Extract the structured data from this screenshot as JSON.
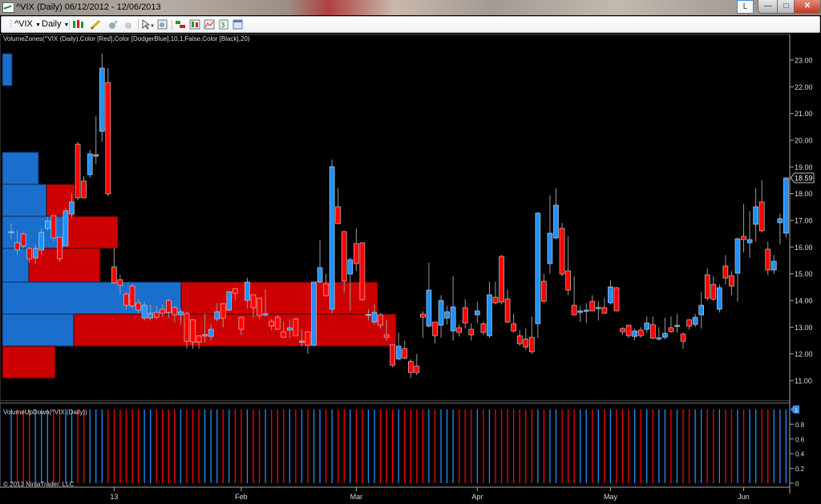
{
  "window": {
    "title": "^VIX (Daily)  06/12/2012 - 12/06/2013",
    "link_button": "L",
    "minimize": "—",
    "maximize": "□",
    "close": "✕"
  },
  "toolbar": {
    "instrument": "^VIX",
    "period": "Daily",
    "icons": [
      "chart-style-icon",
      "drawing-pencil-icon",
      "zoom-in-icon",
      "zoom-out-icon",
      "pointer-icon",
      "data-box-icon",
      "strategies-icon",
      "indicators-icon",
      "dollar-icon",
      "properties-icon"
    ]
  },
  "indicators": {
    "price_panel_label": "VolumeZones(^VIX (Daily),Color [Red],Color [DodgerBlue],10,1,False,Color [Black],20)",
    "volume_panel_label": "VolumeUpDown(^VIX (Daily))",
    "copyright": "© 2013 NinjaTrader, LLC"
  },
  "colors": {
    "up": "#1e90ff",
    "down": "#ff0000",
    "zone_up": "#1a6fcc",
    "zone_down": "#cc0000",
    "background": "#000000"
  },
  "chart_data": {
    "type": "candlestick",
    "symbol": "^VIX",
    "last_price": "18.59",
    "ylim": [
      10.5,
      23.9
    ],
    "y_ticks": [
      "23.00",
      "22.00",
      "21.00",
      "20.00",
      "19.00",
      "18.00",
      "17.00",
      "16.00",
      "15.00",
      "14.00",
      "13.00",
      "12.00",
      "11.00"
    ],
    "x_tick_labels": [
      {
        "label": "13",
        "bar": 17
      },
      {
        "label": "Feb",
        "bar": 38
      },
      {
        "label": "Mar",
        "bar": 57
      },
      {
        "label": "Apr",
        "bar": 77
      },
      {
        "label": "May",
        "bar": 99
      },
      {
        "label": "Jun",
        "bar": 121
      }
    ],
    "ohlc": [
      [
        16.58,
        16.88,
        16.28,
        16.58
      ],
      [
        16.16,
        16.64,
        15.71,
        15.89
      ],
      [
        16.49,
        16.55,
        15.95,
        16.04
      ],
      [
        15.95,
        16.01,
        15.41,
        15.56
      ],
      [
        15.59,
        16.1,
        15.38,
        15.95
      ],
      [
        15.89,
        16.7,
        15.71,
        16.55
      ],
      [
        16.7,
        17.12,
        16.61,
        16.97
      ],
      [
        17.18,
        17.18,
        16.22,
        16.34
      ],
      [
        16.37,
        16.37,
        15.44,
        15.56
      ],
      [
        16.04,
        17.48,
        16.04,
        17.36
      ],
      [
        17.24,
        18.0,
        17.09,
        17.69
      ],
      [
        19.85,
        19.94,
        17.75,
        17.84
      ],
      [
        18.47,
        18.65,
        17.84,
        17.84
      ],
      [
        18.71,
        19.64,
        18.59,
        19.49
      ],
      [
        19.4,
        20.9,
        19.1,
        19.46
      ],
      [
        20.33,
        23.24,
        19.94,
        22.7
      ],
      [
        22.16,
        22.7,
        17.9,
        17.99
      ],
      [
        15.26,
        15.95,
        14.63,
        14.66
      ],
      [
        14.78,
        14.96,
        14.24,
        14.57
      ],
      [
        14.24,
        14.3,
        13.67,
        13.82
      ],
      [
        14.54,
        14.6,
        13.7,
        13.79
      ],
      [
        13.91,
        14.05,
        13.5,
        13.64
      ],
      [
        13.34,
        13.97,
        13.25,
        13.82
      ],
      [
        13.34,
        13.85,
        13.25,
        13.52
      ],
      [
        13.55,
        13.8,
        13.3,
        13.37
      ],
      [
        13.67,
        13.85,
        13.4,
        13.52
      ],
      [
        14.0,
        14.05,
        13.35,
        13.55
      ],
      [
        13.73,
        13.8,
        13.2,
        13.46
      ],
      [
        13.46,
        13.7,
        13.1,
        13.58
      ],
      [
        13.52,
        13.6,
        12.2,
        12.47
      ],
      [
        13.28,
        13.3,
        12.2,
        12.44
      ],
      [
        12.68,
        12.7,
        12.2,
        12.44
      ],
      [
        12.7,
        13.52,
        12.41,
        12.72
      ],
      [
        12.65,
        13.1,
        12.5,
        12.92
      ],
      [
        13.31,
        13.9,
        13.2,
        13.58
      ],
      [
        13.88,
        13.9,
        13.0,
        13.34
      ],
      [
        13.64,
        14.35,
        13.6,
        14.33
      ],
      [
        14.45,
        14.45,
        14.0,
        14.27
      ],
      [
        13.37,
        13.4,
        12.7,
        12.92
      ],
      [
        14.0,
        14.85,
        13.7,
        14.69
      ],
      [
        14.21,
        14.21,
        13.35,
        13.73
      ],
      [
        14.09,
        14.1,
        13.3,
        13.43
      ],
      [
        13.49,
        14.42,
        13.4,
        13.5
      ],
      [
        13.22,
        13.3,
        12.9,
        13.04
      ],
      [
        13.37,
        13.45,
        12.9,
        12.92
      ],
      [
        12.83,
        13.2,
        12.6,
        12.62
      ],
      [
        12.89,
        13.3,
        12.6,
        12.98
      ],
      [
        13.31,
        13.35,
        12.68,
        12.68
      ],
      [
        12.47,
        12.92,
        12.27,
        12.48
      ],
      [
        12.83,
        12.85,
        12.0,
        12.32
      ],
      [
        12.32,
        14.69,
        12.3,
        14.69
      ],
      [
        14.69,
        16.25,
        14.65,
        15.23
      ],
      [
        14.63,
        15.0,
        14.15,
        14.18
      ],
      [
        13.67,
        19.27,
        13.5,
        19.01
      ],
      [
        17.51,
        18.2,
        16.85,
        16.88
      ],
      [
        16.58,
        16.6,
        14.3,
        14.72
      ],
      [
        14.99,
        15.6,
        13.6,
        15.53
      ],
      [
        16.13,
        16.7,
        15.1,
        15.38
      ],
      [
        16.16,
        16.16,
        14.0,
        14.03
      ],
      [
        13.46,
        13.67,
        13.25,
        13.48
      ],
      [
        13.19,
        13.85,
        13.1,
        13.55
      ],
      [
        13.46,
        13.52,
        12.95,
        13.07
      ],
      [
        12.71,
        13.3,
        12.5,
        12.62
      ],
      [
        12.35,
        12.35,
        11.5,
        11.57
      ],
      [
        11.81,
        12.8,
        11.75,
        12.29
      ],
      [
        12.2,
        12.5,
        11.8,
        11.84
      ],
      [
        11.72,
        11.8,
        11.1,
        11.3
      ],
      [
        11.54,
        12.0,
        11.2,
        11.3
      ],
      [
        13.49,
        13.6,
        12.6,
        13.37
      ],
      [
        13.04,
        15.41,
        13.0,
        14.39
      ],
      [
        13.19,
        13.2,
        12.4,
        12.68
      ],
      [
        13.07,
        14.2,
        12.6,
        14.0
      ],
      [
        13.34,
        13.8,
        13.1,
        13.58
      ],
      [
        12.86,
        14.9,
        12.5,
        13.76
      ],
      [
        12.98,
        13.1,
        12.65,
        12.8
      ],
      [
        13.73,
        14.05,
        12.95,
        13.16
      ],
      [
        12.92,
        13.15,
        12.5,
        12.71
      ],
      [
        13.46,
        13.95,
        13.15,
        13.61
      ],
      [
        13.13,
        13.2,
        12.7,
        12.8
      ],
      [
        12.68,
        14.7,
        12.6,
        14.21
      ],
      [
        14.12,
        14.7,
        13.85,
        13.91
      ],
      [
        15.65,
        15.7,
        13.85,
        13.94
      ],
      [
        14.06,
        14.4,
        13.15,
        13.19
      ],
      [
        13.13,
        13.5,
        12.8,
        12.86
      ],
      [
        12.68,
        12.9,
        12.3,
        12.38
      ],
      [
        12.56,
        12.95,
        12.15,
        12.26
      ],
      [
        12.62,
        13.4,
        12.0,
        12.08
      ],
      [
        13.13,
        17.3,
        12.6,
        17.27
      ],
      [
        14.72,
        15.0,
        13.9,
        13.97
      ],
      [
        15.38,
        17.93,
        15.0,
        16.52
      ],
      [
        16.34,
        18.2,
        16.3,
        17.57
      ],
      [
        16.7,
        16.9,
        14.9,
        14.99
      ],
      [
        15.11,
        16.4,
        14.2,
        14.39
      ],
      [
        13.82,
        14.9,
        13.45,
        13.46
      ],
      [
        13.55,
        13.8,
        13.2,
        13.61
      ],
      [
        13.63,
        13.9,
        13.16,
        13.64
      ],
      [
        13.97,
        14.2,
        13.6,
        13.61
      ],
      [
        13.73,
        13.97,
        13.25,
        13.74
      ],
      [
        13.73,
        14.1,
        13.5,
        13.52
      ],
      [
        13.91,
        14.75,
        13.85,
        14.51
      ],
      [
        14.48,
        14.5,
        13.6,
        13.61
      ],
      [
        12.95,
        13.0,
        12.7,
        12.83
      ],
      [
        13.07,
        13.1,
        12.6,
        12.68
      ],
      [
        12.65,
        12.95,
        12.5,
        12.86
      ],
      [
        12.89,
        13.0,
        12.6,
        12.68
      ],
      [
        12.92,
        13.4,
        12.8,
        13.16
      ],
      [
        13.1,
        13.4,
        12.55,
        12.59
      ],
      [
        12.58,
        13.0,
        12.5,
        12.6
      ],
      [
        12.62,
        13.35,
        12.55,
        12.77
      ],
      [
        12.98,
        13.4,
        12.8,
        12.83
      ],
      [
        13.06,
        13.5,
        12.8,
        13.07
      ],
      [
        12.74,
        12.8,
        12.2,
        12.47
      ],
      [
        13.28,
        13.3,
        12.9,
        13.04
      ],
      [
        13.1,
        13.5,
        13.0,
        13.37
      ],
      [
        13.46,
        14.3,
        12.95,
        13.82
      ],
      [
        14.96,
        15.2,
        14.0,
        14.09
      ],
      [
        14.6,
        14.9,
        14.0,
        14.05
      ],
      [
        13.67,
        14.6,
        13.55,
        14.48
      ],
      [
        15.29,
        15.7,
        14.6,
        14.84
      ],
      [
        14.93,
        15.1,
        14.2,
        14.54
      ],
      [
        15.02,
        16.35,
        13.95,
        16.31
      ],
      [
        16.4,
        17.6,
        15.8,
        16.28
      ],
      [
        16.16,
        17.35,
        15.6,
        16.28
      ],
      [
        16.85,
        18.2,
        16.2,
        17.51
      ],
      [
        17.69,
        18.5,
        16.55,
        16.61
      ],
      [
        15.92,
        16.2,
        14.95,
        15.14
      ],
      [
        15.14,
        15.7,
        15.0,
        15.47
      ],
      [
        16.91,
        17.25,
        16.1,
        17.06
      ],
      [
        16.52,
        18.6,
        16.35,
        18.59
      ]
    ],
    "volume_zones": [
      {
        "price_high": 23.24,
        "price_low": 22.04,
        "up_volume": 12,
        "down_volume": 0
      },
      {
        "price_high": 19.55,
        "price_low": 18.35,
        "up_volume": 45,
        "down_volume": 0
      },
      {
        "price_high": 18.35,
        "price_low": 17.15,
        "up_volume": 55,
        "down_volume": 35
      },
      {
        "price_high": 17.15,
        "price_low": 15.95,
        "up_volume": 78,
        "down_volume": 66
      },
      {
        "price_high": 15.95,
        "price_low": 14.69,
        "up_volume": 33,
        "down_volume": 89
      },
      {
        "price_high": 14.69,
        "price_low": 13.49,
        "up_volume": 223,
        "down_volume": 245
      },
      {
        "price_high": 13.49,
        "price_low": 12.29,
        "up_volume": 89,
        "down_volume": 402
      },
      {
        "price_high": 12.29,
        "price_low": 11.09,
        "up_volume": 0,
        "down_volume": 66
      }
    ],
    "volume_panel": {
      "ylim": [
        0,
        1
      ],
      "y_ticks": [
        "0.8",
        "0.6",
        "0.4",
        "0.2",
        "0"
      ],
      "last_value": "1",
      "bar_value": 1
    }
  }
}
